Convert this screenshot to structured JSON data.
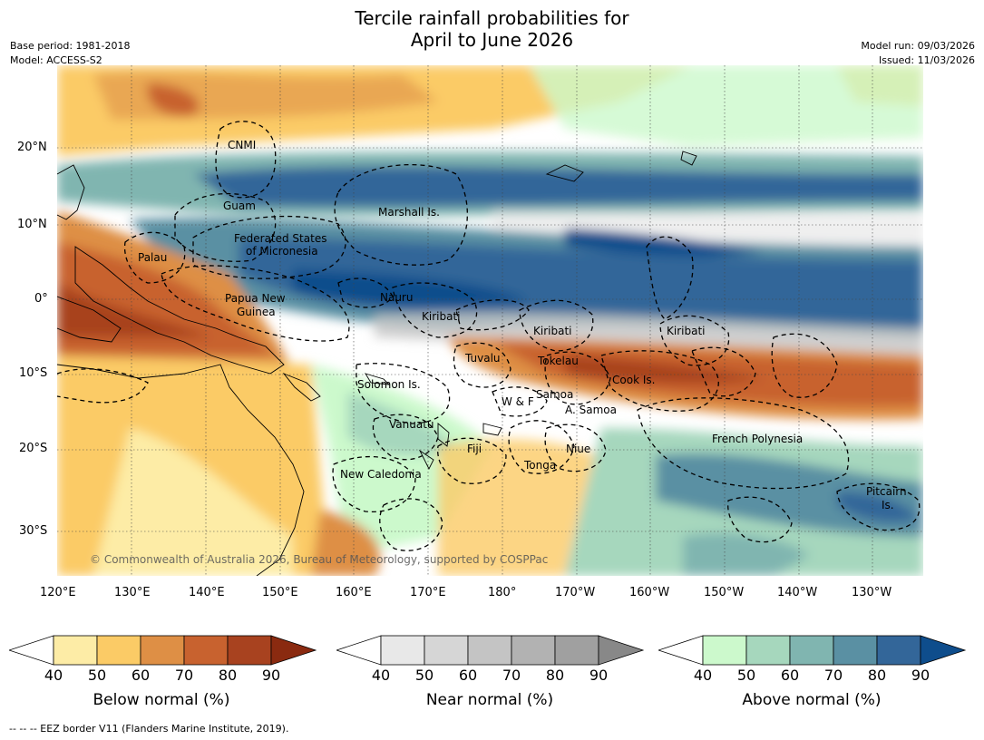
{
  "title": {
    "line1": "Tercile rainfall probabilities for",
    "line2": "April to June 2026"
  },
  "meta": {
    "base_period": "Base period: 1981-2018",
    "model": "Model: ACCESS-S2",
    "model_run": "Model run: 09/03/2026",
    "issued": "Issued: 11/03/2026"
  },
  "axes": {
    "lon_ticks": [
      "120°E",
      "130°E",
      "140°E",
      "150°E",
      "160°E",
      "170°E",
      "180°",
      "170°W",
      "160°W",
      "150°W",
      "140°W",
      "130°W"
    ],
    "lat_ticks": [
      "20°N",
      "10°N",
      "0°",
      "10°S",
      "20°S",
      "30°S"
    ]
  },
  "regions": {
    "cnmi": "CNMI",
    "guam": "Guam",
    "marshall": "Marshall Is.",
    "fsm1": "Federated States",
    "fsm2": "of Micronesia",
    "palau": "Palau",
    "png1": "Papua New",
    "png2": "Guinea",
    "nauru": "Nauru",
    "kiribati_w": "Kiribati",
    "kiribati_c": "Kiribati",
    "kiribati_e": "Kiribati",
    "tuvalu": "Tuvalu",
    "tokelau": "Tokelau",
    "cook": "Cook Is.",
    "solomon": "Solomon Is.",
    "wf": "W & F",
    "samoa": "Samoa",
    "asamoa": "A. Samoa",
    "vanuatu": "Vanuatu",
    "fiji": "Fiji",
    "niue": "Niue",
    "tonga": "Tonga",
    "newcal": "New Caledonia",
    "frpoly": "French Polynesia",
    "pitcairn1": "Pitcairn",
    "pitcairn2": "Is."
  },
  "credit": "© Commonwealth of Australia 2026, Bureau of Meteorology, supported by COSPPac",
  "colorbars": [
    {
      "label": "Below normal (%)",
      "ticks": [
        "40",
        "50",
        "60",
        "70",
        "80",
        "90"
      ],
      "colors": [
        "#ffffff",
        "#fdeca6",
        "#fbcb66",
        "#de8f45",
        "#c8622f",
        "#a8421f",
        "#8a2a10"
      ]
    },
    {
      "label": "Near normal (%)",
      "ticks": [
        "40",
        "50",
        "60",
        "70",
        "80",
        "90"
      ],
      "colors": [
        "#ffffff",
        "#e8e8e8",
        "#d6d6d6",
        "#c4c4c4",
        "#b2b2b2",
        "#a0a0a0",
        "#888888"
      ]
    },
    {
      "label": "Above normal (%)",
      "ticks": [
        "40",
        "50",
        "60",
        "70",
        "80",
        "90"
      ],
      "colors": [
        "#ffffff",
        "#ccf9cc",
        "#a6d7bd",
        "#80b5b0",
        "#5a90a3",
        "#336699",
        "#0e4d8c"
      ]
    }
  ],
  "footnote": "--  --  -- EEZ border V11 (Flanders Marine Institute, 2019)."
}
